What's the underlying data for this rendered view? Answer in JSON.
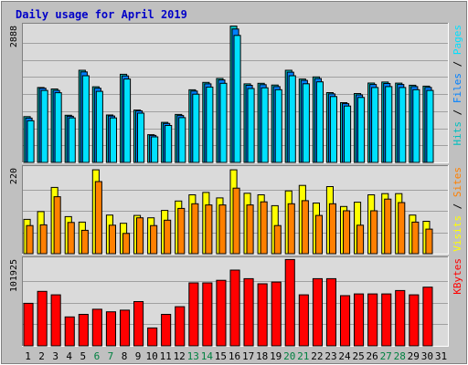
{
  "chart_data": {
    "type": "bar",
    "title": "Daily usage for April 2019",
    "colors": {
      "background": "#c0c0c0",
      "plot": "#dadada",
      "title": "#0000c8",
      "hits": "#00bfbf",
      "files": "#0080ff",
      "pages": "#00e0ff",
      "visits": "#ffff00",
      "sites": "#ff8000",
      "kbytes": "#ff0000",
      "weekend": "#008040",
      "weekday": "#000000"
    },
    "categories": [
      "1",
      "2",
      "3",
      "4",
      "5",
      "6",
      "7",
      "8",
      "9",
      "10",
      "11",
      "12",
      "13",
      "14",
      "15",
      "16",
      "17",
      "18",
      "19",
      "20",
      "21",
      "22",
      "23",
      "24",
      "25",
      "26",
      "27",
      "28",
      "29",
      "30",
      "31"
    ],
    "weekend_days": [
      "6",
      "7",
      "13",
      "14",
      "20",
      "21",
      "27",
      "28"
    ],
    "panels": [
      {
        "id": "hits-files-pages",
        "y_max_label": "2888",
        "ylim": [
          0,
          2888
        ],
        "legend": [
          {
            "text": "Pages",
            "color": "#00e0ff"
          },
          {
            "text": "Files",
            "color": "#0080ff"
          },
          {
            "text": "Hits",
            "color": "#00bfbf"
          }
        ],
        "series": [
          {
            "name": "Hits",
            "values": [
              966,
              1581,
              1550,
              996,
              1945,
              1597,
              1001,
              1860,
              1105,
              586,
              845,
              1012,
              1532,
              1689,
              1772,
              2877,
              1658,
              1670,
              1633,
              1945,
              1759,
              1804,
              1472,
              1261,
              1454,
              1675,
              1696,
              1674,
              1629,
              1609,
              0
            ]
          },
          {
            "name": "Files",
            "values": [
              935,
              1565,
              1519,
              974,
              1910,
              1565,
              980,
              1825,
              1087,
              570,
              822,
              990,
              1505,
              1658,
              1740,
              2815,
              1627,
              1640,
              1600,
              1905,
              1730,
              1770,
              1445,
              1240,
              1425,
              1645,
              1665,
              1645,
              1600,
              1582,
              0
            ]
          },
          {
            "name": "Pages",
            "values": [
              880,
              1520,
              1470,
              940,
              1830,
              1500,
              940,
              1760,
              1040,
              540,
              780,
              945,
              1440,
              1590,
              1670,
              2680,
              1560,
              1575,
              1535,
              1830,
              1660,
              1700,
              1390,
              1190,
              1370,
              1580,
              1600,
              1580,
              1535,
              1520,
              0
            ]
          }
        ]
      },
      {
        "id": "visits-sites",
        "y_max_label": "220",
        "ylim": [
          0,
          220
        ],
        "legend": [
          {
            "text": "Sites",
            "color": "#ff8000"
          },
          {
            "text": "Visits",
            "color": "#ffff00"
          }
        ],
        "series": [
          {
            "name": "Visits",
            "values": [
              88,
              108,
              170,
              95,
              81,
              215,
              99,
              78,
              98,
              92,
              111,
              135,
              151,
              157,
              143,
              215,
              155,
              151,
              123,
              161,
              175,
              130,
              172,
              121,
              132,
              151,
              154,
              154,
              99,
              83,
              0
            ]
          },
          {
            "name": "Sites",
            "values": [
              72,
              74,
              146,
              80,
              60,
              185,
              73,
              52,
              92,
              72,
              86,
              116,
              128,
              125,
              125,
              168,
              125,
              133,
              72,
              128,
              136,
              98,
              128,
              110,
              73,
              110,
              140,
              131,
              81,
              63,
              0
            ]
          }
        ]
      },
      {
        "id": "kbytes",
        "y_max_label": "101925",
        "ylim": [
          0,
          101925
        ],
        "legend": [
          {
            "text": "KBytes",
            "color": "#ff0000"
          }
        ],
        "series": [
          {
            "name": "KBytes",
            "values": [
              50000,
              64000,
              60000,
              34000,
              37000,
              43000,
              40000,
              42000,
              52000,
              21000,
              37000,
              46000,
              74000,
              74000,
              77000,
              89000,
              79000,
              73000,
              75000,
              101500,
              60000,
              79000,
              79000,
              59000,
              61000,
              61000,
              61000,
              65000,
              60000,
              69000,
              0
            ]
          }
        ]
      }
    ]
  }
}
